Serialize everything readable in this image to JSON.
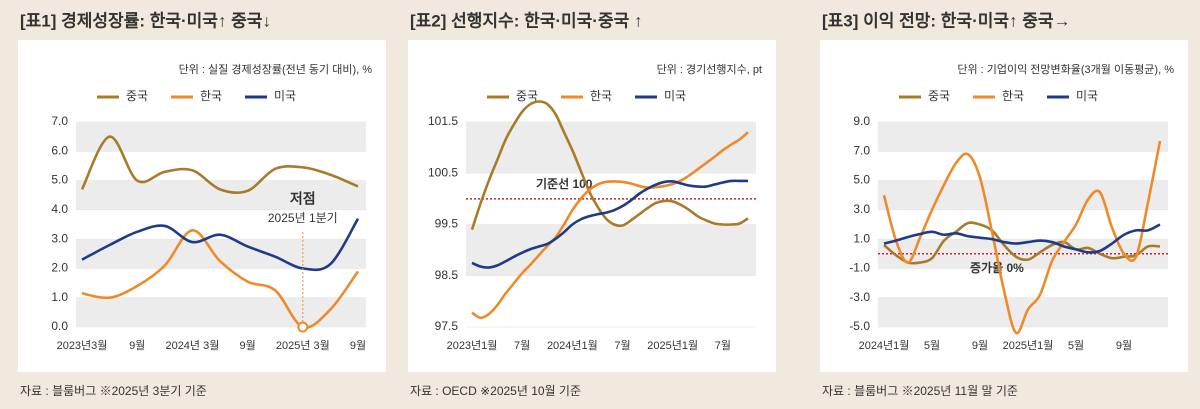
{
  "chart_data": [
    {
      "type": "line",
      "title": "[표1] 경제성장률: 한국·미국↑ 중국↓",
      "subtitle": "단위 : 실질 경제성장률(전년 동기 대비), %",
      "source": "자료 : 블룸버그 ※2025년 3분기 기준",
      "categories": [
        "2023년3월",
        null,
        "9월",
        null,
        "2024년 3월",
        null,
        "9월",
        null,
        "2025년 3월",
        null,
        "9월"
      ],
      "series": [
        {
          "name": "중국",
          "color": "#a87b2a",
          "values": [
            4.7,
            6.5,
            5.0,
            5.3,
            5.35,
            4.7,
            4.65,
            5.4,
            5.45,
            5.2,
            4.8
          ]
        },
        {
          "name": "한국",
          "color": "#ee8a2a",
          "values": [
            1.15,
            1.0,
            1.4,
            2.1,
            3.3,
            2.25,
            1.55,
            1.25,
            0.0,
            0.6,
            1.9
          ]
        },
        {
          "name": "미국",
          "color": "#1f3a87",
          "values": [
            2.3,
            2.8,
            3.25,
            3.45,
            2.9,
            3.15,
            2.75,
            2.4,
            2.0,
            2.15,
            3.7
          ]
        }
      ],
      "ylim": [
        0,
        7
      ],
      "yticks": [
        {
          "value": 0,
          "label": "0.0"
        },
        {
          "value": 1,
          "label": "1.0"
        },
        {
          "value": 2,
          "label": "2.0"
        },
        {
          "value": 3,
          "label": "3.0"
        },
        {
          "value": 4,
          "label": "4.0"
        },
        {
          "value": 5,
          "label": "5.0"
        },
        {
          "value": 6,
          "label": "6.0"
        },
        {
          "value": 7,
          "label": "7.0"
        }
      ],
      "annotation": {
        "text": "저점",
        "subtext": "2025년 1분기",
        "series": "한국",
        "category": "2025년 3월"
      }
    },
    {
      "type": "line",
      "title": "[표2] 선행지수: 한국·미국·중국 ↑",
      "subtitle": "단위 : 경기선행지수, pt",
      "source": "자료 : OECD ※2025년 10월 기준",
      "categories": [
        "2023년1월",
        null,
        null,
        null,
        null,
        null,
        "7월",
        null,
        null,
        null,
        null,
        null,
        "2024년1월",
        null,
        null,
        null,
        null,
        null,
        "7월",
        null,
        null,
        null,
        null,
        null,
        "2025년1월",
        null,
        null,
        null,
        null,
        null,
        "7월",
        null,
        null,
        null
      ],
      "series": [
        {
          "name": "중국",
          "color": "#a87b2a",
          "values": [
            99.4,
            99.9,
            100.35,
            100.75,
            101.15,
            101.45,
            101.7,
            101.85,
            101.9,
            101.85,
            101.65,
            101.3,
            100.95,
            100.55,
            100.15,
            99.85,
            99.62,
            99.5,
            99.48,
            99.58,
            99.7,
            99.82,
            99.92,
            99.96,
            99.95,
            99.88,
            99.78,
            99.66,
            99.58,
            99.52,
            99.5,
            99.5,
            99.52,
            99.62
          ]
        },
        {
          "name": "한국",
          "color": "#ee8a2a",
          "values": [
            97.78,
            97.68,
            97.75,
            97.92,
            98.15,
            98.35,
            98.55,
            98.72,
            98.9,
            99.08,
            99.25,
            99.5,
            99.78,
            100.0,
            100.17,
            100.28,
            100.33,
            100.34,
            100.33,
            100.3,
            100.25,
            100.22,
            100.23,
            100.25,
            100.29,
            100.36,
            100.46,
            100.58,
            100.7,
            100.82,
            100.95,
            101.06,
            101.16,
            101.3
          ]
        },
        {
          "name": "미국",
          "color": "#1f3a87",
          "values": [
            98.75,
            98.68,
            98.66,
            98.7,
            98.78,
            98.87,
            98.95,
            99.02,
            99.07,
            99.12,
            99.22,
            99.35,
            99.5,
            99.6,
            99.66,
            99.7,
            99.73,
            99.78,
            99.86,
            99.97,
            100.1,
            100.2,
            100.28,
            100.33,
            100.34,
            100.3,
            100.26,
            100.24,
            100.24,
            100.28,
            100.32,
            100.35,
            100.35,
            100.35
          ]
        }
      ],
      "ylim": [
        97.5,
        101.5
      ],
      "yticks": [
        97.5,
        98.5,
        99.5,
        100.5,
        101.5
      ],
      "reference_line": {
        "value": 100,
        "label": "기준선 100",
        "color": "#c0283a"
      }
    },
    {
      "type": "line",
      "title": "[표3] 이익 전망: 한국·미국↑ 중국→",
      "subtitle": "단위 : 기업이익 전망변화율(3개월 이동평균), %",
      "source": "자료 : 블룸버그 ※2025년 11월 말 기준",
      "categories": [
        "2024년1월",
        null,
        null,
        null,
        "5월",
        null,
        null,
        null,
        "9월",
        null,
        null,
        null,
        "2025년1월",
        null,
        null,
        null,
        "5월",
        null,
        null,
        null,
        "9월",
        null,
        null,
        null
      ],
      "series": [
        {
          "name": "중국",
          "color": "#a87b2a",
          "values": [
            0.6,
            -0.1,
            -0.6,
            -0.6,
            -0.3,
            0.9,
            1.5,
            2.1,
            2.0,
            1.6,
            0.6,
            -0.2,
            -0.4,
            0.1,
            0.6,
            0.8,
            0.3,
            0.4,
            0.0,
            -0.3,
            -0.2,
            -0.1,
            0.5,
            0.5
          ]
        },
        {
          "name": "한국",
          "color": "#ee8a2a",
          "values": [
            4.0,
            0.9,
            -0.6,
            1.1,
            3.0,
            4.7,
            6.2,
            6.8,
            5.2,
            1.5,
            -2.5,
            -5.4,
            -3.8,
            -2.8,
            -0.5,
            0.8,
            2.0,
            3.7,
            4.2,
            1.8,
            0.0,
            -0.2,
            3.5,
            7.7
          ]
        },
        {
          "name": "미국",
          "color": "#1f3a87",
          "values": [
            0.7,
            0.9,
            1.15,
            1.35,
            1.5,
            1.3,
            1.4,
            1.2,
            1.1,
            1.0,
            0.8,
            0.7,
            0.8,
            0.9,
            0.8,
            0.5,
            0.3,
            0.1,
            0.2,
            0.7,
            1.3,
            1.6,
            1.6,
            2.0
          ]
        }
      ],
      "ylim": [
        -5,
        9
      ],
      "yticks": [
        {
          "value": -5,
          "label": "-5.0"
        },
        {
          "value": -3,
          "label": "-3.0"
        },
        {
          "value": -1,
          "label": "-1.0"
        },
        {
          "value": 1,
          "label": "1.0"
        },
        {
          "value": 3,
          "label": "3.0"
        },
        {
          "value": 5,
          "label": "5.0"
        },
        {
          "value": 7,
          "label": "7.0"
        },
        {
          "value": 9,
          "label": "9.0"
        }
      ],
      "reference_line": {
        "value": 0,
        "label": "증가율 0%",
        "color": "#c0283a"
      }
    }
  ]
}
